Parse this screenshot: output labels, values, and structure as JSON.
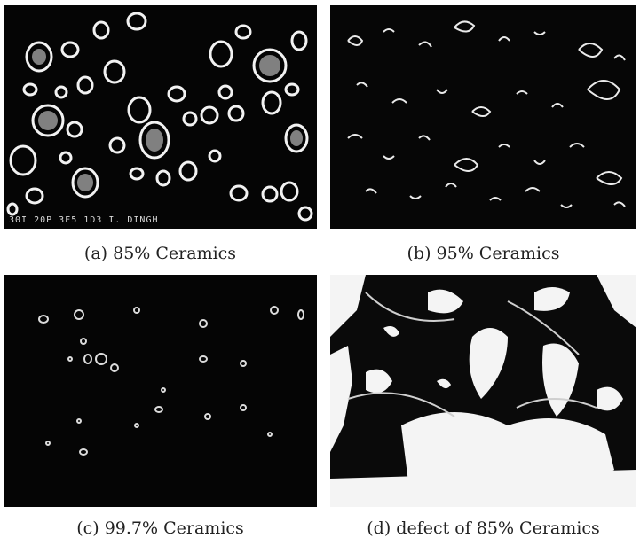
{
  "figure": {
    "panels": [
      {
        "id": "a",
        "caption": "(a) 85% Ceramics",
        "scale_text": "30I 20P 3F5 1D3 I. DINGH"
      },
      {
        "id": "b",
        "caption": "(b) 95% Ceramics",
        "scale_text": ""
      },
      {
        "id": "c",
        "caption": "(c) 99.7% Ceramics",
        "scale_text": ""
      },
      {
        "id": "d",
        "caption": "(d) defect of 85% Ceramics",
        "scale_text": ""
      }
    ]
  }
}
